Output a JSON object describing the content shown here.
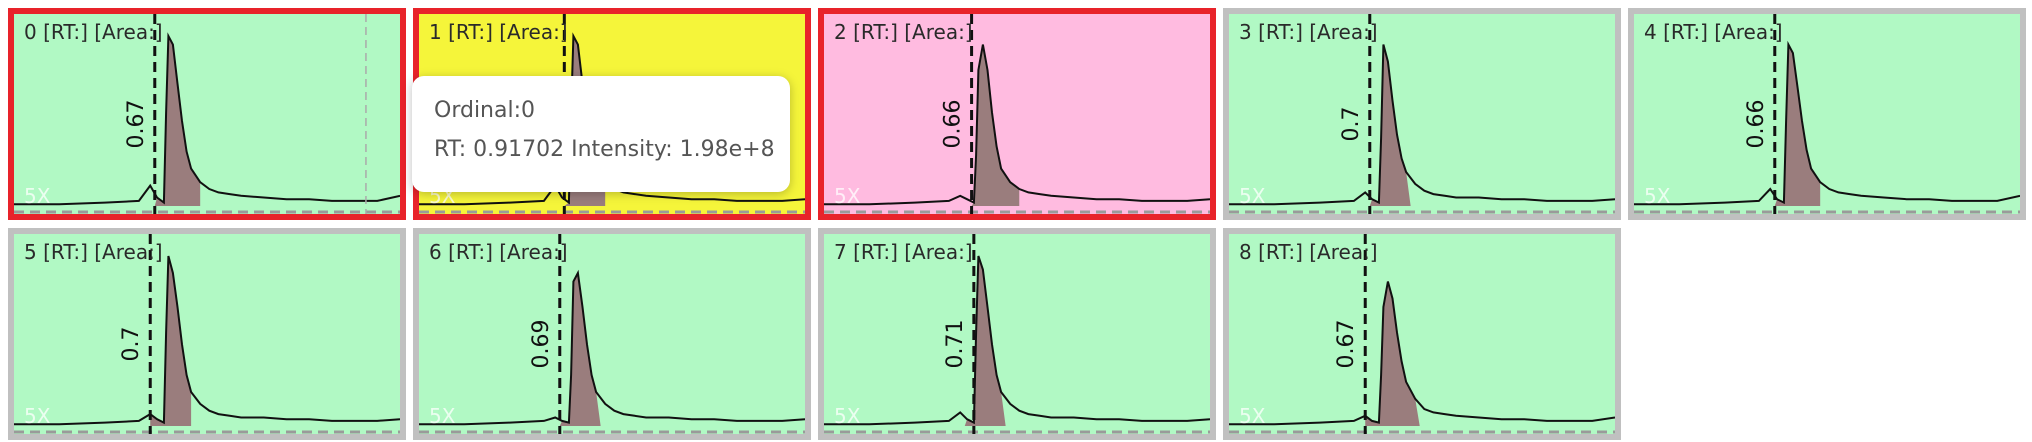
{
  "chart_data": {
    "type": "line",
    "rt_range": [
      0,
      1.7
    ],
    "intensity_range": [
      0,
      210000000.0
    ],
    "x": [
      0.0,
      0.2,
      0.4,
      0.55,
      0.6,
      0.63,
      0.66,
      0.67,
      0.68,
      0.7,
      0.72,
      0.74,
      0.76,
      0.78,
      0.82,
      0.86,
      0.9,
      0.95,
      1.0,
      1.1,
      1.2,
      1.3,
      1.4,
      1.5,
      1.6,
      1.7
    ],
    "series": [
      {
        "values": [
          0.01,
          0.01,
          0.02,
          0.03,
          0.12,
          0.05,
          0.02,
          0.55,
          1.0,
          0.95,
          0.72,
          0.5,
          0.32,
          0.22,
          0.14,
          0.1,
          0.08,
          0.07,
          0.06,
          0.05,
          0.04,
          0.04,
          0.03,
          0.03,
          0.03,
          0.06
        ]
      },
      {
        "values": [
          0.01,
          0.01,
          0.02,
          0.03,
          0.12,
          0.05,
          0.02,
          0.55,
          1.0,
          0.95,
          0.72,
          0.5,
          0.32,
          0.22,
          0.14,
          0.1,
          0.08,
          0.07,
          0.06,
          0.05,
          0.04,
          0.04,
          0.03,
          0.03,
          0.03,
          0.04
        ]
      },
      {
        "values": [
          0.01,
          0.01,
          0.02,
          0.03,
          0.06,
          0.04,
          0.02,
          0.3,
          0.8,
          0.95,
          0.8,
          0.55,
          0.35,
          0.22,
          0.14,
          0.1,
          0.08,
          0.07,
          0.06,
          0.05,
          0.04,
          0.04,
          0.03,
          0.03,
          0.03,
          0.04
        ]
      },
      {
        "values": [
          0.01,
          0.01,
          0.02,
          0.03,
          0.08,
          0.04,
          0.02,
          0.4,
          0.95,
          0.85,
          0.62,
          0.42,
          0.28,
          0.2,
          0.13,
          0.09,
          0.07,
          0.06,
          0.05,
          0.05,
          0.04,
          0.04,
          0.03,
          0.03,
          0.03,
          0.04
        ]
      },
      {
        "values": [
          0.01,
          0.01,
          0.02,
          0.03,
          0.1,
          0.04,
          0.02,
          0.5,
          0.95,
          0.9,
          0.7,
          0.5,
          0.33,
          0.22,
          0.14,
          0.1,
          0.08,
          0.07,
          0.06,
          0.05,
          0.04,
          0.04,
          0.03,
          0.03,
          0.03,
          0.06
        ]
      },
      {
        "values": [
          0.01,
          0.01,
          0.02,
          0.03,
          0.07,
          0.04,
          0.02,
          0.55,
          1.0,
          0.9,
          0.7,
          0.48,
          0.3,
          0.2,
          0.13,
          0.09,
          0.07,
          0.06,
          0.05,
          0.05,
          0.04,
          0.04,
          0.03,
          0.03,
          0.03,
          0.04
        ]
      },
      {
        "values": [
          0.01,
          0.01,
          0.02,
          0.03,
          0.05,
          0.03,
          0.02,
          0.3,
          0.85,
          0.9,
          0.7,
          0.48,
          0.3,
          0.2,
          0.13,
          0.09,
          0.07,
          0.06,
          0.05,
          0.05,
          0.04,
          0.04,
          0.03,
          0.03,
          0.03,
          0.04
        ]
      },
      {
        "values": [
          0.01,
          0.01,
          0.02,
          0.03,
          0.08,
          0.04,
          0.02,
          0.55,
          1.0,
          0.92,
          0.7,
          0.48,
          0.3,
          0.2,
          0.13,
          0.09,
          0.07,
          0.06,
          0.05,
          0.05,
          0.04,
          0.04,
          0.03,
          0.03,
          0.03,
          0.04
        ]
      },
      {
        "values": [
          0.01,
          0.01,
          0.02,
          0.03,
          0.06,
          0.03,
          0.02,
          0.3,
          0.7,
          0.85,
          0.75,
          0.55,
          0.38,
          0.26,
          0.16,
          0.1,
          0.08,
          0.07,
          0.06,
          0.05,
          0.04,
          0.04,
          0.03,
          0.03,
          0.03,
          0.05
        ]
      }
    ],
    "peak_fill_color": "#9a7d7d"
  },
  "panels": [
    {
      "title": "0 [RT:] [Area:]",
      "zoom": "5X",
      "rt_marker": 0.62,
      "rt_label": "0.67",
      "bg": "#b1f9c4",
      "border": "red",
      "peak_start": 0.62,
      "peak_end": 0.82,
      "extra_marker": 1.55
    },
    {
      "title": "1 [RT:] [Area:]",
      "zoom": "5X",
      "rt_marker": 0.64,
      "rt_label": "",
      "bg": "#f5f53a",
      "border": "red",
      "peak_start": 0.64,
      "peak_end": 0.82
    },
    {
      "title": "2 [RT:] [Area:]",
      "zoom": "5X",
      "rt_marker": 0.65,
      "rt_label": "0.66",
      "bg": "#ffbbe0",
      "border": "red",
      "peak_start": 0.65,
      "peak_end": 0.86
    },
    {
      "title": "3 [RT:] [Area:]",
      "zoom": "5X",
      "rt_marker": 0.62,
      "rt_label": "0.7",
      "bg": "#b1f9c4",
      "border": "gray",
      "peak_start": 0.62,
      "peak_end": 0.8
    },
    {
      "title": "4 [RT:] [Area:]",
      "zoom": "5X",
      "rt_marker": 0.62,
      "rt_label": "0.66",
      "bg": "#b1f9c4",
      "border": "gray",
      "peak_start": 0.62,
      "peak_end": 0.82
    },
    {
      "title": "5 [RT:] [Area:]",
      "zoom": "5X",
      "rt_marker": 0.6,
      "rt_label": "0.7",
      "bg": "#b1f9c4",
      "border": "gray",
      "peak_start": 0.6,
      "peak_end": 0.78
    },
    {
      "title": "6 [RT:] [Area:]",
      "zoom": "5X",
      "rt_marker": 0.62,
      "rt_label": "0.69",
      "bg": "#b1f9c4",
      "border": "gray",
      "peak_start": 0.62,
      "peak_end": 0.8
    },
    {
      "title": "7 [RT:] [Area:]",
      "zoom": "5X",
      "rt_marker": 0.66,
      "rt_label": "0.71",
      "bg": "#b1f9c4",
      "border": "gray",
      "peak_start": 0.62,
      "peak_end": 0.8
    },
    {
      "title": "8 [RT:] [Area:]",
      "zoom": "5X",
      "rt_marker": 0.6,
      "rt_label": "0.67",
      "bg": "#b1f9c4",
      "border": "gray",
      "peak_start": 0.6,
      "peak_end": 0.84
    }
  ],
  "tooltip": {
    "ordinal_text": "Ordinal:0",
    "detail_text": "RT: 0.91702 Intensity: 1.98e+8"
  }
}
